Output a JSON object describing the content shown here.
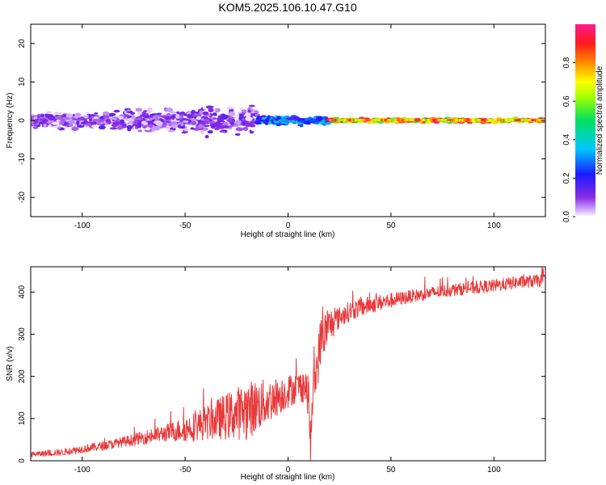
{
  "figure_title": "KOM5.2025.106.10.47.G10",
  "chart_data": [
    {
      "type": "heatmap",
      "title": "KOM5.2025.106.10.47.G10",
      "xlabel": "Height of straight line (km)",
      "ylabel": "Frequency (Hz)",
      "xlim": [
        -125,
        125
      ],
      "ylim": [
        -25,
        25
      ],
      "xticks": [
        "-100",
        "-50",
        "0",
        "50",
        "100"
      ],
      "yticks": [
        "-20",
        "-10",
        "0",
        "10",
        "20"
      ],
      "colorbar": {
        "label": "Normalized spectral amplitude",
        "range": [
          0,
          1
        ],
        "ticks": [
          "0.0",
          "0.2",
          "0.4",
          "0.6",
          "0.8"
        ],
        "colormap": "rainbow (purple → blue → cyan → green → yellow → orange → red → magenta)"
      },
      "features": [
        {
          "x_range": [
            -125,
            -15
          ],
          "freq_center": 0,
          "freq_spread": 5,
          "amplitude_range": [
            0.0,
            0.15
          ],
          "description": "scattered weak purple/blue patches"
        },
        {
          "x_range": [
            -15,
            20
          ],
          "freq_center": 0,
          "freq_spread": 1.5,
          "amplitude_range": [
            0.15,
            0.4
          ],
          "description": "cyan/green band near 0 Hz"
        },
        {
          "x_range": [
            20,
            125
          ],
          "freq_center": 0,
          "freq_spread": 0.8,
          "amplitude_range": [
            0.5,
            1.0
          ],
          "description": "narrow strong red/yellow line at 0 Hz"
        }
      ]
    },
    {
      "type": "line",
      "xlabel": "Height of straight line (km)",
      "ylabel": "SNR (v/v)",
      "xlim": [
        -125,
        125
      ],
      "ylim": [
        0,
        460
      ],
      "xticks": [
        "-100",
        "-50",
        "0",
        "50",
        "100"
      ],
      "yticks": [
        "0",
        "100",
        "200",
        "300",
        "400"
      ],
      "series": [
        {
          "color": "#e8393a",
          "trend": [
            [
              -125,
              15
            ],
            [
              -110,
              20
            ],
            [
              -100,
              28
            ],
            [
              -90,
              35
            ],
            [
              -80,
              45
            ],
            [
              -70,
              55
            ],
            [
              -60,
              65
            ],
            [
              -50,
              75
            ],
            [
              -40,
              90
            ],
            [
              -30,
              105
            ],
            [
              -20,
              120
            ],
            [
              -10,
              140
            ],
            [
              0,
              165
            ],
            [
              5,
              175
            ],
            [
              8,
              180
            ],
            [
              10,
              150
            ],
            [
              11,
              20
            ],
            [
              12,
              160
            ],
            [
              14,
              220
            ],
            [
              16,
              290
            ],
            [
              20,
              320
            ],
            [
              25,
              340
            ],
            [
              30,
              355
            ],
            [
              40,
              370
            ],
            [
              50,
              380
            ],
            [
              60,
              390
            ],
            [
              70,
              398
            ],
            [
              80,
              405
            ],
            [
              90,
              410
            ],
            [
              100,
              415
            ],
            [
              110,
              422
            ],
            [
              125,
              428
            ]
          ],
          "noise": [
            [
              -125,
              6
            ],
            [
              -80,
              12
            ],
            [
              -60,
              20
            ],
            [
              -40,
              40
            ],
            [
              -20,
              70
            ],
            [
              -5,
              45
            ],
            [
              5,
              35
            ],
            [
              15,
              60
            ],
            [
              25,
              25
            ],
            [
              60,
              15
            ],
            [
              125,
              15
            ]
          ]
        }
      ]
    }
  ]
}
